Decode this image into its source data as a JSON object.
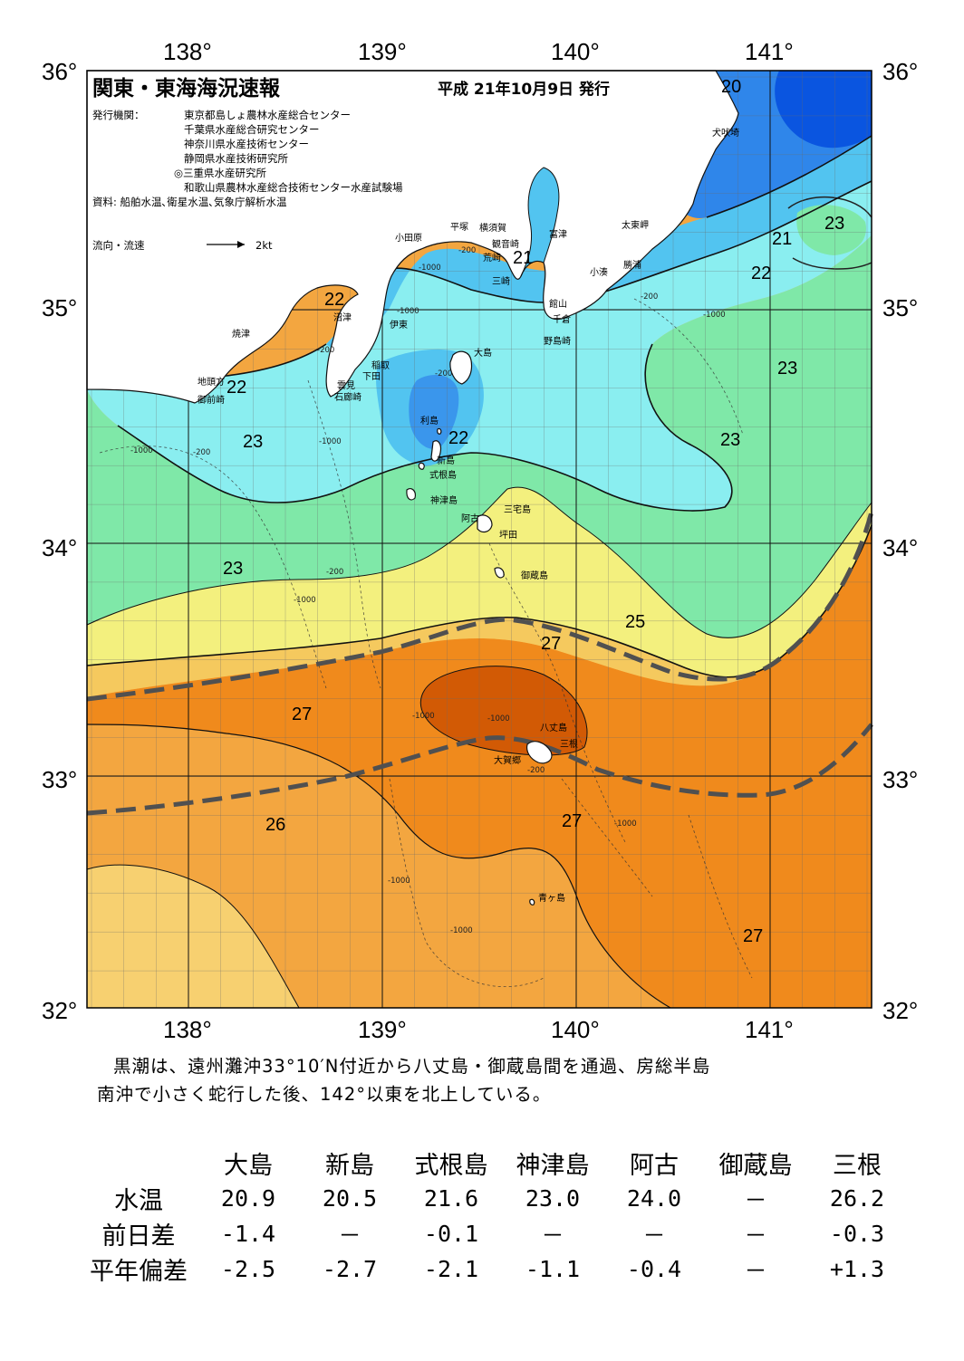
{
  "header": {
    "title": "関東・東海海況速報",
    "issue_date": "平成 21年10月9日 発行",
    "publisher_label": "発行機関：",
    "publishers": [
      "東京都島しょ農林水産総合センター",
      "千葉県水産総合研究センター",
      "神奈川県水産技術センター",
      "静岡県水産技術研究所",
      "◎三重県水産研究所",
      "和歌山県農林水産総合技術センター水産試験場"
    ],
    "sources": "資料: 船舶水温､衛星水温､気象庁解析水温",
    "legend_label": "流向・流速",
    "legend_speed": "2kt"
  },
  "axes": {
    "lon_labels": [
      "138°",
      "139°",
      "140°",
      "141°"
    ],
    "lat_labels": [
      "36°",
      "35°",
      "34°",
      "33°",
      "32°"
    ]
  },
  "place_names": {
    "inubozaki": "犬吠埼",
    "taitozaki": "太東岬",
    "katsuura": "勝浦",
    "kominato": "小湊",
    "tomiura": "富津",
    "kannonzaki": "観音崎",
    "yokosuka": "横須賀",
    "hiratsuka": "平塚",
    "odawara": "小田原",
    "arasaki": "荒崎",
    "misaki": "三崎",
    "tateyama": "館山",
    "chikura": "千倉",
    "nojimazaki": "野島崎",
    "numazu": "沼津",
    "ito": "伊東",
    "yaizu": "焼津",
    "inatori": "稲取",
    "shimoda": "下田",
    "kumomi": "雲見",
    "irozaki": "石廊崎",
    "jitokata": "地頭方",
    "omaezaki": "御前崎",
    "oshima": "大島",
    "toshima": "利島",
    "niijima": "新島",
    "shikinejima": "式根島",
    "kozushima": "神津島",
    "miyakejima": "三宅島",
    "ako": "阿古",
    "tsubota": "坪田",
    "mikurajima": "御蔵島",
    "hachijojima": "八丈島",
    "mitsune": "三根",
    "okago": "大賀郷",
    "aogashima": "青ヶ島"
  },
  "isotherm_labels": [
    "20",
    "21",
    "21",
    "22",
    "22",
    "22",
    "22",
    "23",
    "23",
    "23",
    "23",
    "23",
    "25",
    "27",
    "27",
    "27",
    "26",
    "27"
  ],
  "depth_labels": [
    "-1000",
    "-200"
  ],
  "colors": {
    "t19": "#0a55e0",
    "t20": "#2f86ea",
    "t21": "#52c4f0",
    "t22": "#8aeef0",
    "t23": "#7fe8a8",
    "t24": "#f3f07e",
    "t25": "#f5c95e",
    "t26": "#f3a640",
    "t27": "#f08a1c",
    "t28": "#d25a05",
    "land": "#ffffff",
    "kuroshio_axis": "#505050"
  },
  "summary": {
    "line1": "黒潮は、遠州灘沖33°10′N付近から八丈島・御蔵島間を通過、房総半島",
    "line2": "南沖で小さく蛇行した後、142°以東を北上している。"
  },
  "table": {
    "columns": [
      "大島",
      "新島",
      "式根島",
      "神津島",
      "阿古",
      "御蔵島",
      "三根"
    ],
    "rows": [
      {
        "label": "水温",
        "values": [
          "20.9",
          "20.5",
          "21.6",
          "23.0",
          "24.0",
          "－",
          "26.2"
        ]
      },
      {
        "label": "前日差",
        "values": [
          "-1.4",
          "－",
          "-0.1",
          "－",
          "－",
          "－",
          "-0.3"
        ]
      },
      {
        "label": "平年偏差",
        "values": [
          "-2.5",
          "-2.7",
          "-2.1",
          "-1.1",
          "-0.4",
          "－",
          "+1.3"
        ]
      }
    ]
  }
}
